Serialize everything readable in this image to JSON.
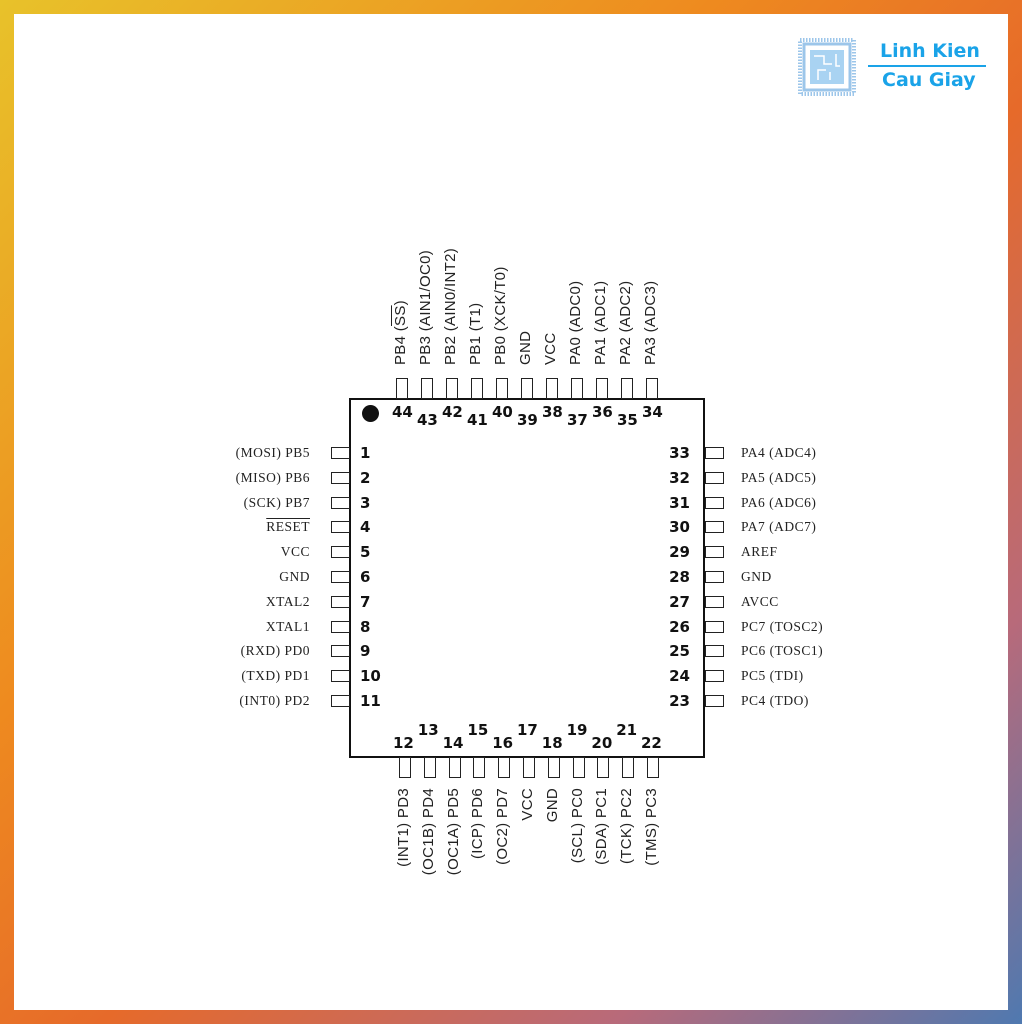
{
  "logo": {
    "line1": "Linh Kien",
    "line2": "Cau Giay",
    "color": "#1aa3e8"
  },
  "chip": {
    "left_pins": [
      {
        "num": "1",
        "label": "(MOSI) PB5"
      },
      {
        "num": "2",
        "label": "(MISO) PB6"
      },
      {
        "num": "3",
        "label": "(SCK) PB7"
      },
      {
        "num": "4",
        "label": "RESET",
        "overline": true
      },
      {
        "num": "5",
        "label": "VCC"
      },
      {
        "num": "6",
        "label": "GND"
      },
      {
        "num": "7",
        "label": "XTAL2"
      },
      {
        "num": "8",
        "label": "XTAL1"
      },
      {
        "num": "9",
        "label": "(RXD) PD0"
      },
      {
        "num": "10",
        "label": "(TXD) PD1"
      },
      {
        "num": "11",
        "label": "(INT0) PD2"
      }
    ],
    "bottom_pins": [
      {
        "num": "12",
        "label": "(INT1) PD3"
      },
      {
        "num": "13",
        "label": "(OC1B) PD4"
      },
      {
        "num": "14",
        "label": "(OC1A) PD5"
      },
      {
        "num": "15",
        "label": "(ICP) PD6"
      },
      {
        "num": "16",
        "label": "(OC2) PD7"
      },
      {
        "num": "17",
        "label": "VCC"
      },
      {
        "num": "18",
        "label": "GND"
      },
      {
        "num": "19",
        "label": "(SCL) PC0"
      },
      {
        "num": "20",
        "label": "(SDA) PC1"
      },
      {
        "num": "21",
        "label": "(TCK) PC2"
      },
      {
        "num": "22",
        "label": "(TMS) PC3"
      }
    ],
    "right_pins": [
      {
        "num": "33",
        "label": "PA4 (ADC4)"
      },
      {
        "num": "32",
        "label": "PA5 (ADC5)"
      },
      {
        "num": "31",
        "label": "PA6 (ADC6)"
      },
      {
        "num": "30",
        "label": "PA7 (ADC7)"
      },
      {
        "num": "29",
        "label": "AREF"
      },
      {
        "num": "28",
        "label": "GND"
      },
      {
        "num": "27",
        "label": "AVCC"
      },
      {
        "num": "26",
        "label": "PC7 (TOSC2)"
      },
      {
        "num": "25",
        "label": "PC6 (TOSC1)"
      },
      {
        "num": "24",
        "label": "PC5 (TDI)"
      },
      {
        "num": "23",
        "label": "PC4 (TDO)"
      }
    ],
    "top_pins": [
      {
        "num": "44",
        "label": "PB4 (",
        "ol": "SS",
        "tail": ")"
      },
      {
        "num": "43",
        "label": "PB3 (AIN1/OC0)"
      },
      {
        "num": "42",
        "label": "PB2 (AIN0/INT2)"
      },
      {
        "num": "41",
        "label": "PB1 (T1)"
      },
      {
        "num": "40",
        "label": "PB0 (XCK/T0)"
      },
      {
        "num": "39",
        "label": "GND"
      },
      {
        "num": "38",
        "label": "VCC"
      },
      {
        "num": "37",
        "label": "PA0 (ADC0)"
      },
      {
        "num": "36",
        "label": "PA1 (ADC1)"
      },
      {
        "num": "35",
        "label": "PA2 (ADC2)"
      },
      {
        "num": "34",
        "label": "PA3 (ADC3)"
      }
    ]
  }
}
